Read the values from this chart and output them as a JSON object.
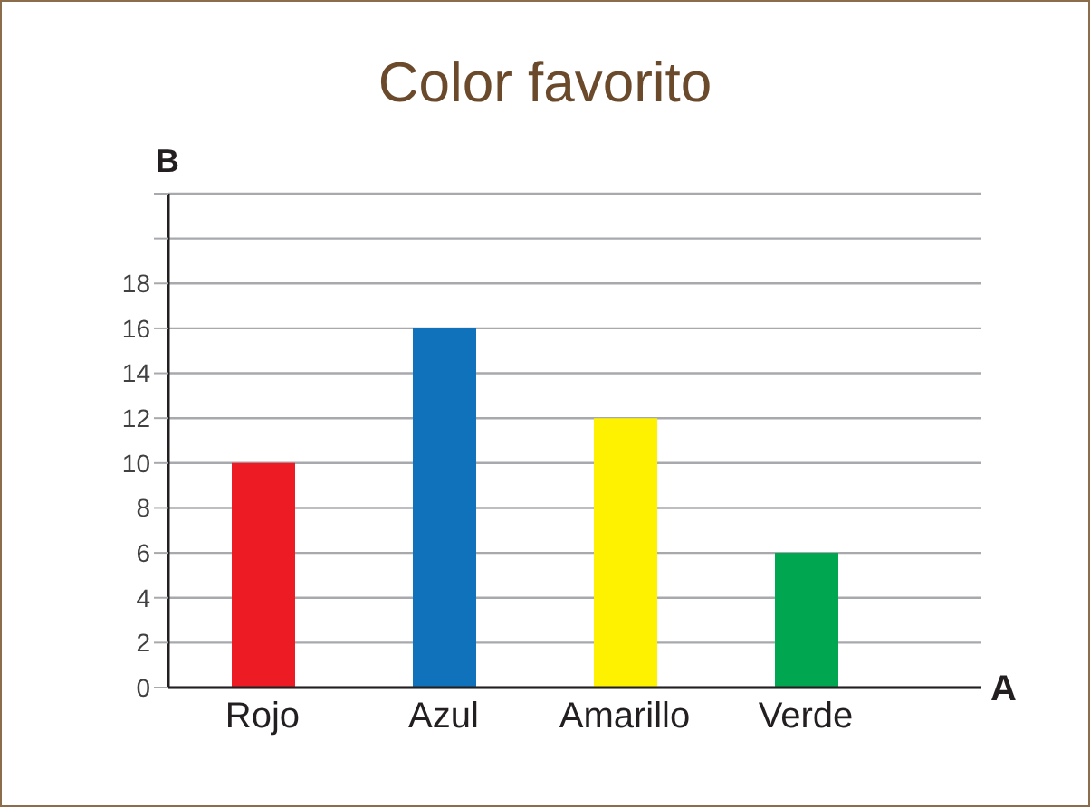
{
  "chart_data": {
    "type": "bar",
    "title": "Color favorito",
    "xlabel": "A",
    "ylabel": "B",
    "categories": [
      "Rojo",
      "Azul",
      "Amarillo",
      "Verde"
    ],
    "values": [
      10,
      16,
      12,
      6
    ],
    "colors": [
      "#ed1c24",
      "#0f72ba",
      "#fff200",
      "#00a650"
    ],
    "ylim": [
      0,
      22
    ],
    "yticks": [
      0,
      2,
      4,
      6,
      8,
      10,
      12,
      14,
      16,
      18,
      {
        "value": 20,
        "label": null
      },
      {
        "value": 22,
        "label": null
      }
    ],
    "grid": "y"
  }
}
